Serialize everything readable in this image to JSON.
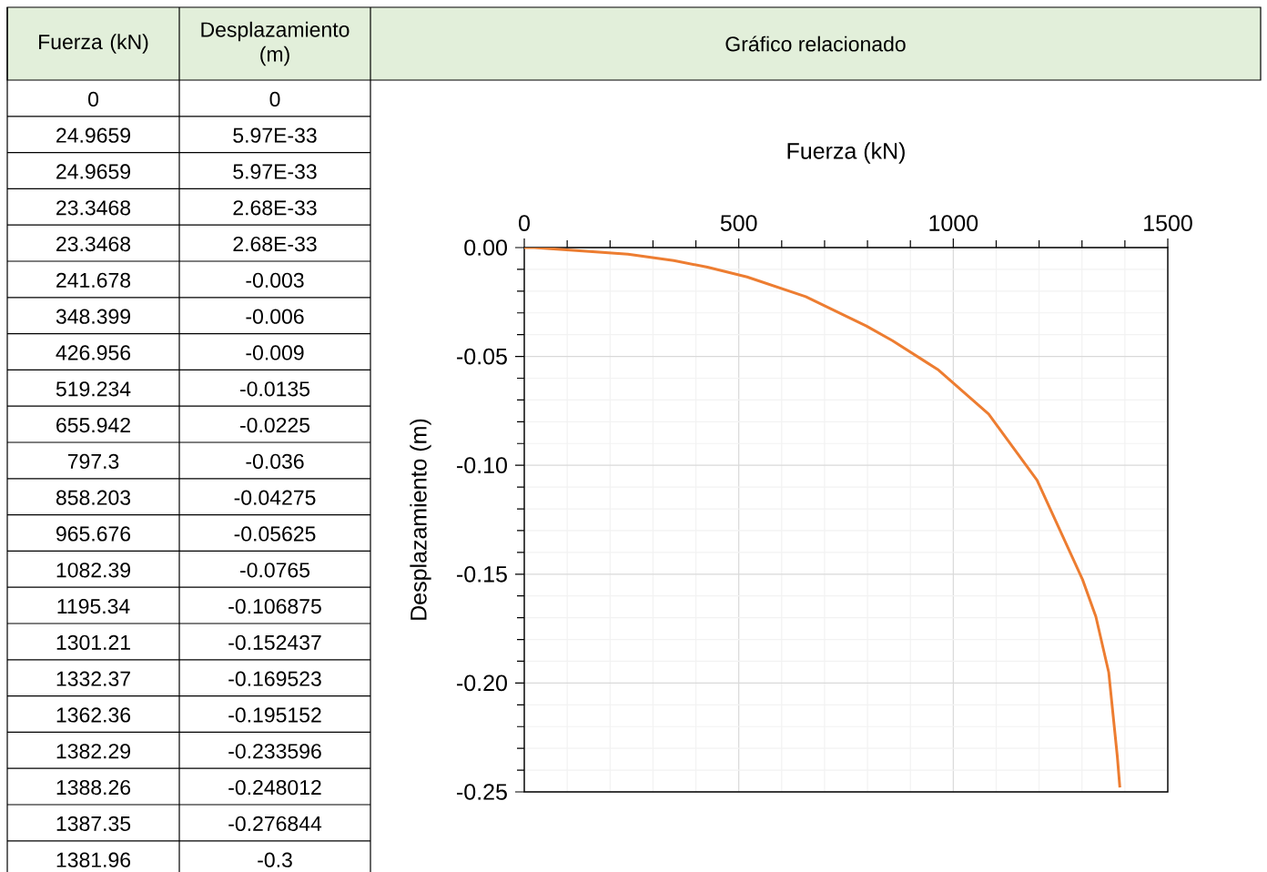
{
  "chart_data": [
    {
      "type": "other",
      "annotations": [
        "Fuerza (kN)",
        "Desplazamiento (m)",
        "0",
        "0",
        "24.9659",
        "5.97E-33",
        "24.9659",
        "5.97E-33",
        "23.3468",
        "2.68E-33",
        "23.3468",
        "2.68E-33",
        "241.678",
        "-0.003",
        "348.399",
        "-0.006",
        "426.956",
        "-0.009",
        "519.234",
        "-0.0135",
        "655.942",
        "-0.0225",
        "797.3",
        "-0.036",
        "858.203",
        "-0.04275",
        "965.676",
        "-0.05625",
        "1082.39",
        "-0.0765",
        "1195.34",
        "-0.106875",
        "1301.21",
        "-0.152437",
        "1332.37",
        "-0.169523",
        "1362.36",
        "-0.195152",
        "1382.29",
        "-0.233596",
        "1388.26",
        "-0.248012",
        "1387.35",
        "-0.276844",
        "1381.96",
        "-0.3"
      ]
    },
    {
      "type": "line",
      "title": "Gráfico relacionado",
      "xlabel": "Fuerza (kN)",
      "ylabel": "Desplazamiento (m)",
      "x": [
        0,
        24.9659,
        24.9659,
        23.3468,
        23.3468,
        241.678,
        348.399,
        426.956,
        519.234,
        655.942,
        797.3,
        858.203,
        965.676,
        1082.39,
        1195.34,
        1301.21,
        1332.37,
        1362.36,
        1382.29,
        1388.26
      ],
      "series": [
        {
          "color": "#ed7d31",
          "values": [
            0,
            0,
            0,
            0,
            0,
            -0.003,
            -0.006,
            -0.009,
            -0.0135,
            -0.0225,
            -0.036,
            -0.04275,
            -0.05625,
            -0.0765,
            -0.106875,
            -0.152437,
            -0.169523,
            -0.195152,
            -0.233596,
            -0.248012
          ]
        }
      ],
      "xlim": [
        0,
        1500
      ],
      "ylim": [
        -0.25,
        0
      ],
      "xticks": [
        0,
        {
          "value": 100,
          "label": null
        },
        {
          "value": 200,
          "label": null
        },
        {
          "value": 300,
          "label": null
        },
        {
          "value": 400,
          "label": null
        },
        500,
        {
          "value": 600,
          "label": null
        },
        {
          "value": 700,
          "label": null
        },
        {
          "value": 800,
          "label": null
        },
        {
          "value": 900,
          "label": null
        },
        1000,
        {
          "value": 1100,
          "label": null
        },
        {
          "value": 1200,
          "label": null
        },
        {
          "value": 1300,
          "label": null
        },
        {
          "value": 1400,
          "label": null
        },
        1500
      ],
      "yticks": [
        {
          "value": -0.25,
          "label": "-0.25"
        },
        {
          "value": -0.24,
          "label": null
        },
        {
          "value": -0.23,
          "label": null
        },
        {
          "value": -0.22,
          "label": null
        },
        {
          "value": -0.21,
          "label": null
        },
        {
          "value": -0.2,
          "label": "-0.20"
        },
        {
          "value": -0.19,
          "label": null
        },
        {
          "value": -0.18,
          "label": null
        },
        {
          "value": -0.17,
          "label": null
        },
        {
          "value": -0.16,
          "label": null
        },
        {
          "value": -0.15,
          "label": "-0.15"
        },
        {
          "value": -0.14,
          "label": null
        },
        {
          "value": -0.13,
          "label": null
        },
        {
          "value": -0.12,
          "label": null
        },
        {
          "value": -0.11,
          "label": null
        },
        {
          "value": -0.1,
          "label": "-0.10"
        },
        {
          "value": -0.09,
          "label": null
        },
        {
          "value": -0.08,
          "label": null
        },
        {
          "value": -0.07,
          "label": null
        },
        {
          "value": -0.06,
          "label": null
        },
        {
          "value": -0.05,
          "label": "-0.05"
        },
        {
          "value": -0.04,
          "label": null
        },
        {
          "value": -0.03,
          "label": null
        },
        {
          "value": -0.02,
          "label": null
        },
        {
          "value": -0.01,
          "label": null
        },
        {
          "value": 0,
          "label": "0.00"
        }
      ],
      "grid": true
    }
  ]
}
